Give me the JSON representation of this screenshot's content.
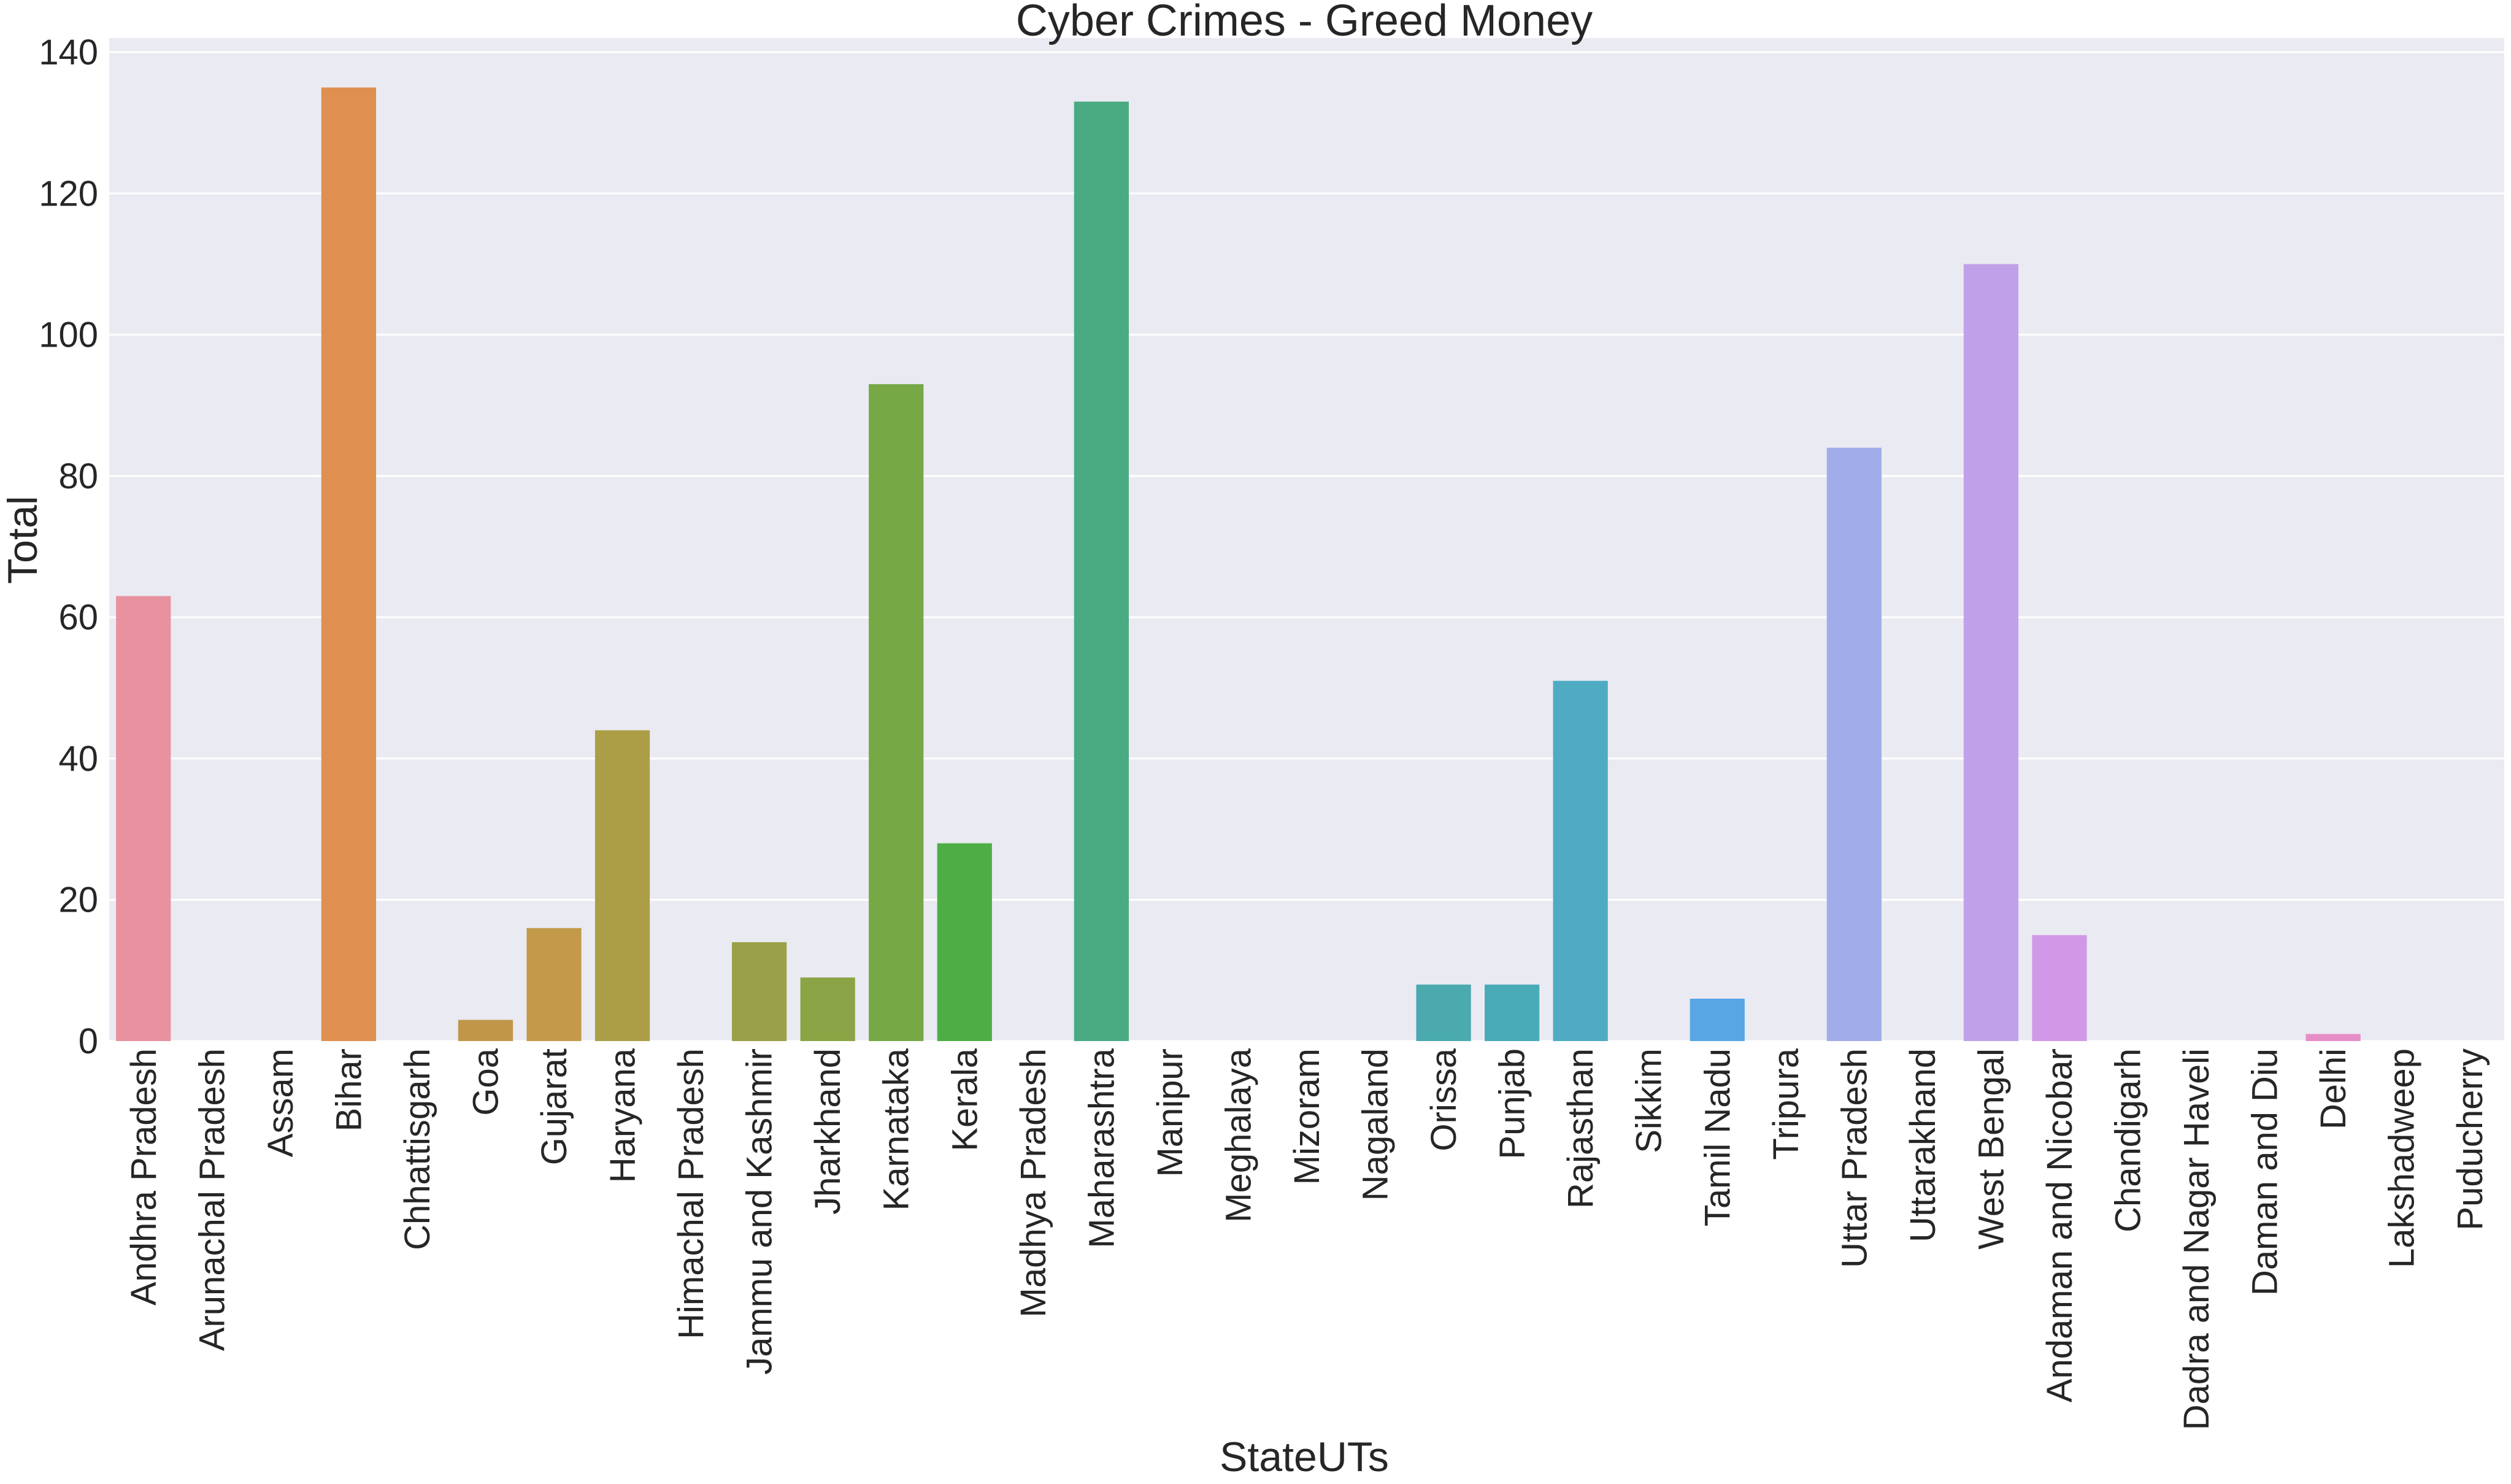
{
  "chart_data": {
    "type": "bar",
    "title": "Cyber Crimes - Greed Money",
    "xlabel": "StateUTs",
    "ylabel": "Total",
    "ylim": [
      0,
      142
    ],
    "yticks": [
      0,
      20,
      40,
      60,
      80,
      100,
      120,
      140
    ],
    "grid": true,
    "background_color": "#eaeaf2",
    "categories": [
      "Andhra Pradesh",
      "Arunachal Pradesh",
      "Assam",
      "Bihar",
      "Chhattisgarh",
      "Goa",
      "Gujarat",
      "Haryana",
      "Himachal Pradesh",
      "Jammu and Kashmir",
      "Jharkhand",
      "Karnataka",
      "Kerala",
      "Madhya Pradesh",
      "Maharashtra",
      "Manipur",
      "Meghalaya",
      "Mizoram",
      "Nagaland",
      "Orissa",
      "Punjab",
      "Rajasthan",
      "Sikkim",
      "Tamil Nadu",
      "Tripura",
      "Uttar Pradesh",
      "Uttarakhand",
      "West Bengal",
      "Andaman and Nicobar",
      "Chandigarh",
      "Dadra and Nagar Haveli",
      "Daman and Diu",
      "Delhi",
      "Lakshadweep",
      "Puducherry"
    ],
    "values": [
      63,
      0,
      0,
      135,
      0,
      3,
      16,
      44,
      0,
      14,
      9,
      93,
      28,
      0,
      133,
      0,
      0,
      0,
      0,
      8,
      8,
      51,
      0,
      6,
      0,
      84,
      0,
      110,
      15,
      0,
      0,
      0,
      1,
      0,
      0
    ],
    "colors": [
      "#e8919f",
      "#e89585",
      "#df8f59",
      "#df8f4f",
      "#c99446",
      "#c19649",
      "#c29a4a",
      "#ab9e47",
      "#9a9f46",
      "#9aa048",
      "#8aa445",
      "#76a846",
      "#4eae45",
      "#4aae72",
      "#4aab83",
      "#48ab8d",
      "#47ab96",
      "#48ab9e",
      "#48aaa5",
      "#4aaaae",
      "#4aabb8",
      "#4fabc2",
      "#52a9d2",
      "#58a6e4",
      "#7fa6e8",
      "#a1ade9",
      "#b1a6e9",
      "#c0a1e9",
      "#d098e6",
      "#dc94e0",
      "#e491d8",
      "#e68fce",
      "#e68dc7",
      "#e68fbf",
      "#e891b5"
    ]
  }
}
